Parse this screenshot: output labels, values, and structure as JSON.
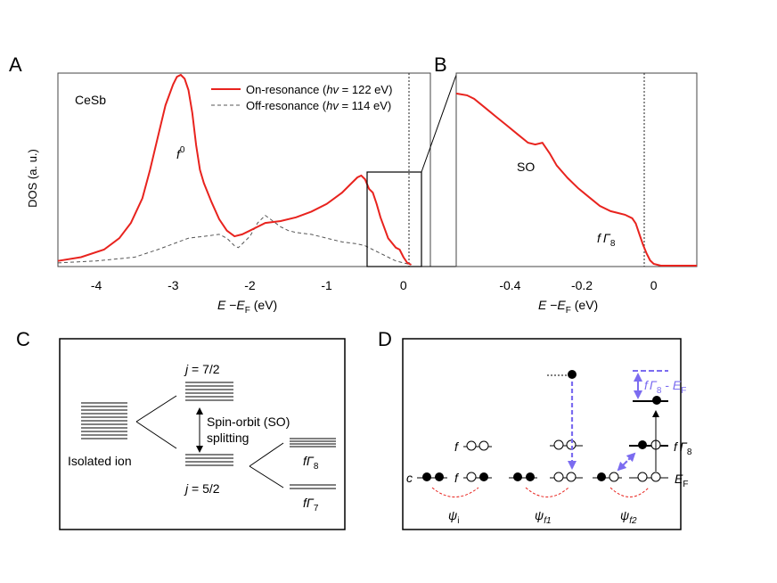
{
  "panels": {
    "A": "A",
    "B": "B",
    "C": "C",
    "D": "D"
  },
  "panel_a": {
    "sample": "CeSb",
    "ylabel": "DOS (a. u.)",
    "x_var": "E",
    "x_sep": " −",
    "x_sub_var": "E",
    "x_sub": "F",
    "x_unit": " (eV)",
    "f0_base": "f",
    "f0_sup": "0",
    "legend": {
      "on_pre": "On-resonance (",
      "on_hv": "hv",
      "on_post": " = 122 eV)",
      "off_pre": "Off-resonance (",
      "off_hv": "hv",
      "off_post": " = 114 eV)"
    },
    "ticks": [
      "-4",
      "-3",
      "-2",
      "-1",
      "0"
    ]
  },
  "panel_b": {
    "so": "SO",
    "g8_f": "f",
    "g8_gamma": "Γ",
    "g8_sub": "8",
    "ticks": [
      "-0.4",
      "-0.2",
      "0"
    ]
  },
  "panel_c": {
    "j72": "j",
    "j72_val": " = 7/2",
    "j52": "j",
    "j52_val": " = 5/2",
    "so_line1": "Spin-orbit (SO)",
    "so_line2": "splitting",
    "isolated": "Isolated ion",
    "fg8_f": "f",
    "fg8_gamma": "Γ",
    "fg8_sub": "8",
    "fg7_f": "f",
    "fg7_gamma": "Γ",
    "fg7_sub": "7"
  },
  "panel_d": {
    "c": "c",
    "f_upper": "f",
    "f_lower": "f",
    "psi": "ψ",
    "psi_i_sub": "i",
    "psi_f1_sub": "f1",
    "psi_f2_sub": "f2",
    "fg8_f": "f",
    "fg8_gamma": "Γ",
    "fg8_sub": "8",
    "ef_e": "E",
    "ef_sub": "F",
    "gap_f": "f",
    "gap_gamma": "Γ",
    "gap_sub": "8",
    "gap_minus": " - ",
    "gap_e": "E",
    "gap_e_sub": "F",
    "purple": "#7b6cf0"
  },
  "chart_data": [
    {
      "type": "line",
      "title": "CeSb",
      "xlabel": "E −E_F (eV)",
      "ylabel": "DOS (a. u.)",
      "xlim": [
        -4.5,
        0.35
      ],
      "ylim": [
        0,
        1.0
      ],
      "series": [
        {
          "name": "On-resonance (hv = 122 eV)",
          "color": "#e8231e",
          "x": [
            -4.5,
            -4.2,
            -3.9,
            -3.7,
            -3.55,
            -3.4,
            -3.3,
            -3.2,
            -3.1,
            -3.0,
            -2.95,
            -2.9,
            -2.85,
            -2.8,
            -2.75,
            -2.7,
            -2.65,
            -2.6,
            -2.5,
            -2.4,
            -2.3,
            -2.2,
            -2.1,
            -2.0,
            -1.9,
            -1.8,
            -1.6,
            -1.4,
            -1.2,
            -1.0,
            -0.9,
            -0.8,
            -0.7,
            -0.6,
            -0.55,
            -0.5,
            -0.45,
            -0.4,
            -0.35,
            -0.3,
            -0.2,
            -0.1,
            -0.05,
            0.0,
            0.05,
            0.1
          ],
          "y": [
            0.02,
            0.04,
            0.08,
            0.14,
            0.22,
            0.35,
            0.5,
            0.67,
            0.84,
            0.95,
            0.99,
            1.0,
            0.98,
            0.92,
            0.8,
            0.63,
            0.5,
            0.43,
            0.33,
            0.24,
            0.18,
            0.15,
            0.16,
            0.18,
            0.2,
            0.22,
            0.23,
            0.25,
            0.28,
            0.32,
            0.35,
            0.38,
            0.42,
            0.46,
            0.47,
            0.45,
            0.4,
            0.38,
            0.32,
            0.25,
            0.14,
            0.09,
            0.08,
            0.04,
            0.01,
            0.0
          ]
        },
        {
          "name": "Off-resonance (hv = 114 eV)",
          "color": "#555555",
          "x": [
            -4.5,
            -4.0,
            -3.5,
            -3.2,
            -3.0,
            -2.8,
            -2.6,
            -2.4,
            -2.3,
            -2.2,
            -2.15,
            -2.1,
            -2.0,
            -1.9,
            -1.8,
            -1.7,
            -1.6,
            -1.5,
            -1.4,
            -1.2,
            -1.0,
            -0.8,
            -0.6,
            -0.5,
            -0.4,
            -0.3,
            -0.2,
            -0.1,
            0.0,
            0.1
          ],
          "y": [
            0.01,
            0.02,
            0.04,
            0.08,
            0.11,
            0.14,
            0.15,
            0.16,
            0.14,
            0.1,
            0.09,
            0.11,
            0.15,
            0.22,
            0.26,
            0.23,
            0.2,
            0.18,
            0.17,
            0.16,
            0.14,
            0.12,
            0.11,
            0.1,
            0.08,
            0.06,
            0.04,
            0.02,
            0.01,
            0.0
          ]
        }
      ]
    },
    {
      "type": "line",
      "xlabel": "E −E_F (eV)",
      "xlim": [
        -0.55,
        0.12
      ],
      "ylim": [
        0,
        1.0
      ],
      "annotations": [
        "SO",
        "f Γ8"
      ],
      "series": [
        {
          "name": "On-resonance (zoom)",
          "color": "#e8231e",
          "x": [
            -0.55,
            -0.52,
            -0.5,
            -0.47,
            -0.44,
            -0.41,
            -0.38,
            -0.35,
            -0.33,
            -0.31,
            -0.29,
            -0.27,
            -0.24,
            -0.21,
            -0.18,
            -0.15,
            -0.12,
            -0.1,
            -0.08,
            -0.06,
            -0.05,
            -0.04,
            -0.03,
            -0.02,
            -0.01,
            0.0,
            0.02,
            0.05,
            0.08,
            0.12
          ],
          "y": [
            0.98,
            0.97,
            0.95,
            0.9,
            0.85,
            0.8,
            0.75,
            0.7,
            0.69,
            0.7,
            0.64,
            0.57,
            0.5,
            0.44,
            0.39,
            0.34,
            0.31,
            0.3,
            0.29,
            0.27,
            0.24,
            0.18,
            0.12,
            0.07,
            0.03,
            0.01,
            0.0,
            0.0,
            0.0,
            0.0
          ]
        }
      ]
    }
  ]
}
